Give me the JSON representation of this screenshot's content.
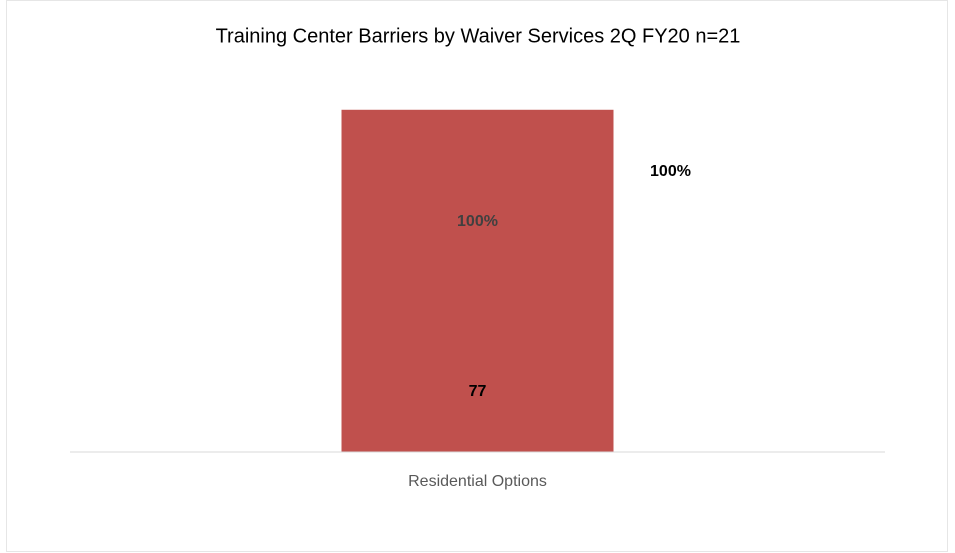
{
  "chart_data": {
    "type": "bar",
    "title": "Training Center Barriers by Waiver Services 2Q FY20 n=21",
    "categories": [
      "Residential Options"
    ],
    "values": [
      77
    ],
    "color": "#c0504d",
    "ylim": [
      0,
      90
    ],
    "share": {
      "values": [
        100
      ],
      "value_labels": [
        "100%"
      ]
    }
  }
}
